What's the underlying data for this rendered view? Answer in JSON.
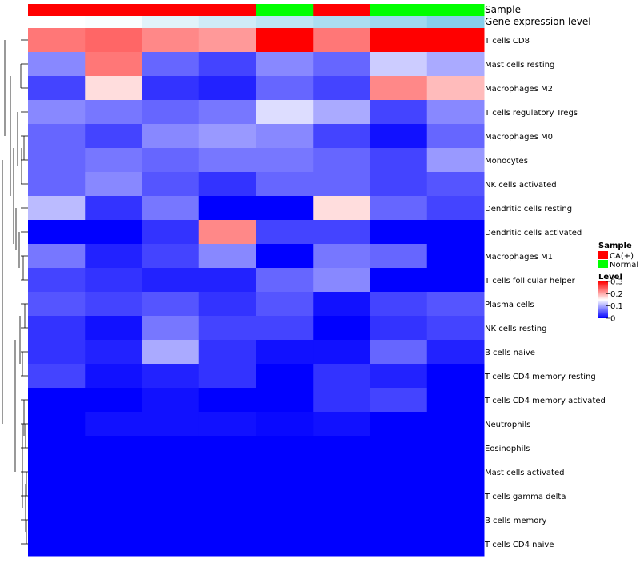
{
  "chart_data": {
    "type": "heatmap",
    "rows": [
      "T cells CD8",
      "Mast cells resting",
      "Macrophages M2",
      "T cells regulatory  Tregs",
      "Macrophages M0",
      "Monocytes",
      "NK cells activated",
      "Dendritic cells resting",
      "Dendritic cells activated",
      "Macrophages M1",
      "T cells follicular helper",
      "Plasma cells",
      "NK cells resting",
      "B cells naive",
      "T cells CD4 memory resting",
      "T cells CD4 memory activated",
      "Neutrophils",
      "Eosinophils",
      "Mast cells activated",
      "T cells gamma delta",
      "B cells memory",
      "T cells CD4 naive"
    ],
    "columns": 8,
    "values": [
      [
        0.23,
        0.24,
        0.22,
        0.21,
        0.3,
        0.23,
        0.3,
        0.3
      ],
      [
        0.08,
        0.23,
        0.06,
        0.04,
        0.08,
        0.06,
        0.12,
        0.1
      ],
      [
        0.04,
        0.17,
        0.03,
        0.02,
        0.06,
        0.04,
        0.22,
        0.19
      ],
      [
        0.08,
        0.07,
        0.06,
        0.07,
        0.13,
        0.1,
        0.04,
        0.08
      ],
      [
        0.06,
        0.04,
        0.08,
        0.09,
        0.08,
        0.04,
        0.01,
        0.06
      ],
      [
        0.06,
        0.07,
        0.06,
        0.07,
        0.07,
        0.06,
        0.04,
        0.09
      ],
      [
        0.06,
        0.08,
        0.05,
        0.03,
        0.06,
        0.06,
        0.04,
        0.05
      ],
      [
        0.11,
        0.03,
        0.07,
        0.0,
        0.0,
        0.17,
        0.06,
        0.04
      ],
      [
        0.0,
        0.0,
        0.03,
        0.22,
        0.04,
        0.04,
        0.0,
        0.0
      ],
      [
        0.07,
        0.02,
        0.04,
        0.08,
        0.0,
        0.07,
        0.06,
        0.0
      ],
      [
        0.04,
        0.03,
        0.02,
        0.02,
        0.06,
        0.08,
        0.0,
        0.0
      ],
      [
        0.05,
        0.04,
        0.05,
        0.03,
        0.05,
        0.01,
        0.04,
        0.05
      ],
      [
        0.03,
        0.01,
        0.07,
        0.04,
        0.04,
        0.0,
        0.03,
        0.04
      ],
      [
        0.03,
        0.02,
        0.1,
        0.03,
        0.01,
        0.01,
        0.06,
        0.02
      ],
      [
        0.04,
        0.01,
        0.02,
        0.03,
        0.0,
        0.03,
        0.02,
        0.0
      ],
      [
        0.0,
        0.0,
        0.01,
        0.0,
        0.0,
        0.03,
        0.04,
        0.0
      ],
      [
        0.0,
        0.01,
        0.01,
        0.01,
        0.005,
        0.01,
        0.0,
        0.0
      ],
      [
        0.0,
        0.0,
        0.0,
        0.0,
        0.0,
        0.0,
        0.0,
        0.0
      ],
      [
        0.0,
        0.0,
        0.0,
        0.0,
        0.0,
        0.0,
        0.0,
        0.0
      ],
      [
        0.0,
        0.0,
        0.0,
        0.0,
        0.0,
        0.0,
        0.0,
        0.0
      ],
      [
        0.0,
        0.0,
        0.0,
        0.0,
        0.0,
        0.0,
        0.0,
        0.0
      ],
      [
        0.0,
        0.0,
        0.0,
        0.0,
        0.0,
        0.0,
        0.0,
        0.0
      ]
    ],
    "value_range": [
      0,
      0.3
    ],
    "color_scale": {
      "low": "#0000ff",
      "mid": "#ffffff",
      "high": "#ff0000",
      "midpoint": 0.15
    },
    "annotations": {
      "sample": {
        "label": "Sample",
        "values": [
          "CA(+)",
          "CA(+)",
          "CA(+)",
          "CA(+)",
          "Normal",
          "CA(+)",
          "Normal",
          "Normal"
        ]
      },
      "gene_expression": {
        "label": "Gene expression level",
        "values": [
          0.0,
          0.05,
          0.25,
          0.4,
          0.55,
          0.7,
          0.8,
          1.0
        ],
        "colors": {
          "low": "#ffffff",
          "high": "#87ceeb"
        }
      }
    },
    "legend": {
      "sample_title": "Sample",
      "sample_items": [
        {
          "label": "CA(+)",
          "color": "#ff0000"
        },
        {
          "label": "Normal",
          "color": "#00ff00"
        }
      ],
      "level_title": "Level",
      "level_ticks": [
        "0.3",
        "0.2",
        "0.1",
        "0"
      ],
      "level_tick_values": [
        0.3,
        0.2,
        0.1,
        0
      ]
    },
    "dendrogram": "row"
  }
}
